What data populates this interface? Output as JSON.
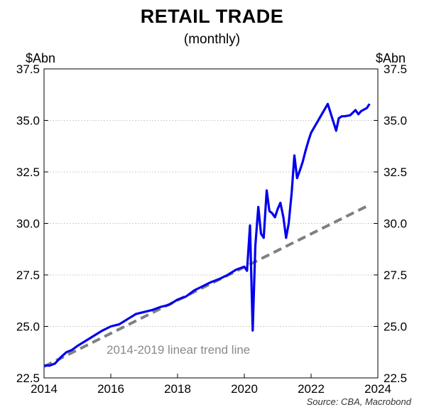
{
  "chart_data": {
    "type": "line",
    "title": "RETAIL TRADE",
    "subtitle": "(monthly)",
    "ylabel_left": "$Abn",
    "ylabel_right": "$Abn",
    "source": "Source: CBA, Macrobond",
    "xlim": [
      2014,
      2024
    ],
    "ylim": [
      22.5,
      37.5
    ],
    "x_ticks": [
      "2014",
      "2016",
      "2018",
      "2020",
      "2022",
      "2024"
    ],
    "y_ticks": [
      "22.5",
      "25.0",
      "27.5",
      "30.0",
      "32.5",
      "35.0",
      "37.5"
    ],
    "grid": true,
    "annotation": "2014-2019 linear trend line",
    "series": [
      {
        "color": "#0000ee",
        "style": "solid",
        "x": [
          2014.0,
          2014.17,
          2014.33,
          2014.5,
          2014.67,
          2014.83,
          2015.0,
          2015.25,
          2015.5,
          2015.75,
          2016.0,
          2016.25,
          2016.5,
          2016.75,
          2017.0,
          2017.25,
          2017.5,
          2017.75,
          2018.0,
          2018.25,
          2018.5,
          2018.75,
          2019.0,
          2019.25,
          2019.5,
          2019.75,
          2020.0,
          2020.08,
          2020.17,
          2020.25,
          2020.33,
          2020.42,
          2020.5,
          2020.58,
          2020.67,
          2020.75,
          2020.83,
          2020.92,
          2021.0,
          2021.08,
          2021.17,
          2021.25,
          2021.33,
          2021.42,
          2021.5,
          2021.58,
          2021.67,
          2021.75,
          2021.83,
          2021.92,
          2022.0,
          2022.25,
          2022.5,
          2022.75,
          2022.83,
          2022.92,
          2023.0,
          2023.17,
          2023.33,
          2023.42,
          2023.5,
          2023.67,
          2023.75
        ],
        "y": [
          23.1,
          23.1,
          23.2,
          23.5,
          23.75,
          23.85,
          24.05,
          24.3,
          24.55,
          24.8,
          25.0,
          25.1,
          25.35,
          25.6,
          25.7,
          25.8,
          25.95,
          26.05,
          26.3,
          26.45,
          26.75,
          26.95,
          27.15,
          27.3,
          27.5,
          27.75,
          27.9,
          27.7,
          29.9,
          24.8,
          28.9,
          30.8,
          29.5,
          29.3,
          31.6,
          30.6,
          30.5,
          30.3,
          30.7,
          31.0,
          30.3,
          29.3,
          30.0,
          31.5,
          33.3,
          32.2,
          32.6,
          33.0,
          33.5,
          34.0,
          34.4,
          35.1,
          35.8,
          34.5,
          35.1,
          35.2,
          35.2,
          35.25,
          35.5,
          35.3,
          35.45,
          35.6,
          35.8
        ]
      },
      {
        "name": "2014-2019 linear trend line",
        "color": "#808080",
        "style": "dashed",
        "x": [
          2014.0,
          2023.75
        ],
        "y": [
          23.05,
          30.9
        ]
      }
    ]
  }
}
